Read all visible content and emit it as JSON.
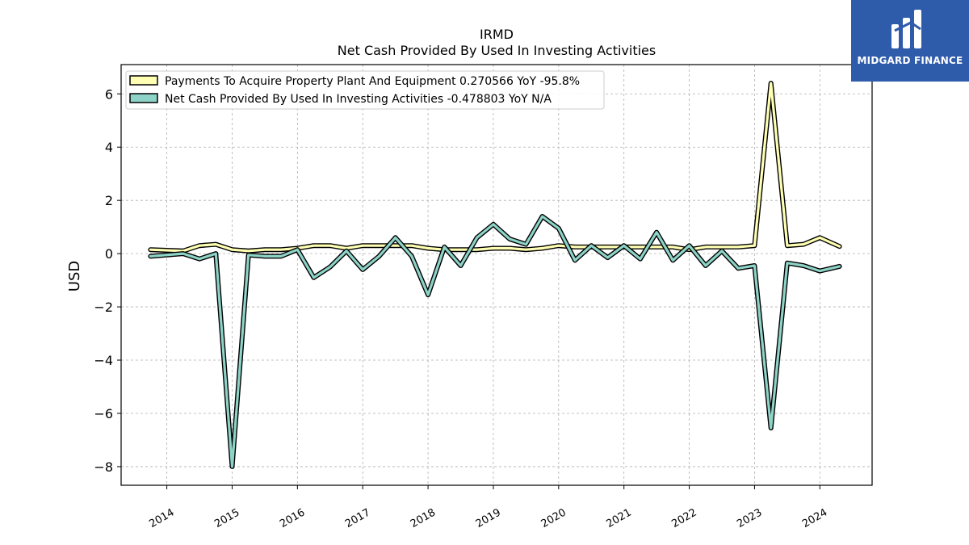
{
  "chart_data": {
    "type": "line",
    "title": "IRMD",
    "subtitle": "Net Cash Provided By Used In Investing Activities",
    "ylabel": "USD",
    "xlabel": "",
    "ylim": [
      -8.7,
      7.1
    ],
    "xlim": [
      2013.3,
      2024.8
    ],
    "yticks": [
      6,
      4,
      2,
      0,
      -2,
      -4,
      -6,
      -8
    ],
    "ytick_labels": [
      "6",
      "4",
      "2",
      "0",
      "−2",
      "−4",
      "−6",
      "−8"
    ],
    "xticks": [
      2014,
      2015,
      2016,
      2017,
      2018,
      2019,
      2020,
      2021,
      2022,
      2023,
      2024
    ],
    "xtick_labels": [
      "2014",
      "2015",
      "2016",
      "2017",
      "2018",
      "2019",
      "2020",
      "2021",
      "2022",
      "2023",
      "2024"
    ],
    "grid": true,
    "legend_position": "top-left",
    "x": [
      2013.75,
      2014.25,
      2014.5,
      2014.75,
      2015.0,
      2015.25,
      2015.5,
      2015.75,
      2016.0,
      2016.25,
      2016.5,
      2016.75,
      2017.0,
      2017.25,
      2017.5,
      2017.75,
      2018.0,
      2018.25,
      2018.5,
      2018.75,
      2019.0,
      2019.25,
      2019.5,
      2019.75,
      2020.0,
      2020.25,
      2020.5,
      2020.75,
      2021.0,
      2021.25,
      2021.5,
      2021.75,
      2022.0,
      2022.25,
      2022.5,
      2022.75,
      2023.0,
      2023.25,
      2023.5,
      2023.75,
      2024.0,
      2024.3
    ],
    "series": [
      {
        "name": "Payments To Acquire Property Plant And Equipment",
        "legend_label": "Payments To Acquire Property Plant And Equipment  0.270566 YoY -95.8%",
        "color": "#ffffb3",
        "values": [
          0.15,
          0.1,
          0.3,
          0.35,
          0.15,
          0.1,
          0.15,
          0.15,
          0.2,
          0.3,
          0.3,
          0.2,
          0.3,
          0.3,
          0.3,
          0.3,
          0.2,
          0.15,
          0.15,
          0.15,
          0.2,
          0.2,
          0.15,
          0.2,
          0.3,
          0.25,
          0.25,
          0.25,
          0.25,
          0.25,
          0.25,
          0.25,
          0.15,
          0.25,
          0.25,
          0.25,
          0.3,
          6.4,
          0.3,
          0.35,
          0.6,
          0.27
        ]
      },
      {
        "name": "Net Cash Provided By Used In Investing Activities",
        "legend_label": "Net Cash Provided By Used In Investing Activities  -0.478803 YoY N/A",
        "color": "#8dd3c7",
        "values": [
          -0.1,
          0.0,
          -0.2,
          0.0,
          -8.0,
          -0.05,
          -0.1,
          -0.1,
          0.15,
          -0.9,
          -0.5,
          0.1,
          -0.6,
          -0.1,
          0.6,
          -0.1,
          -1.55,
          0.25,
          -0.45,
          0.6,
          1.1,
          0.55,
          0.35,
          1.4,
          0.95,
          -0.25,
          0.3,
          -0.15,
          0.3,
          -0.2,
          0.8,
          -0.25,
          0.3,
          -0.45,
          0.1,
          -0.55,
          -0.45,
          -6.55,
          -0.35,
          -0.45,
          -0.65,
          -0.48
        ]
      }
    ]
  },
  "logo": {
    "text": "MIDGARD FINANCE"
  }
}
